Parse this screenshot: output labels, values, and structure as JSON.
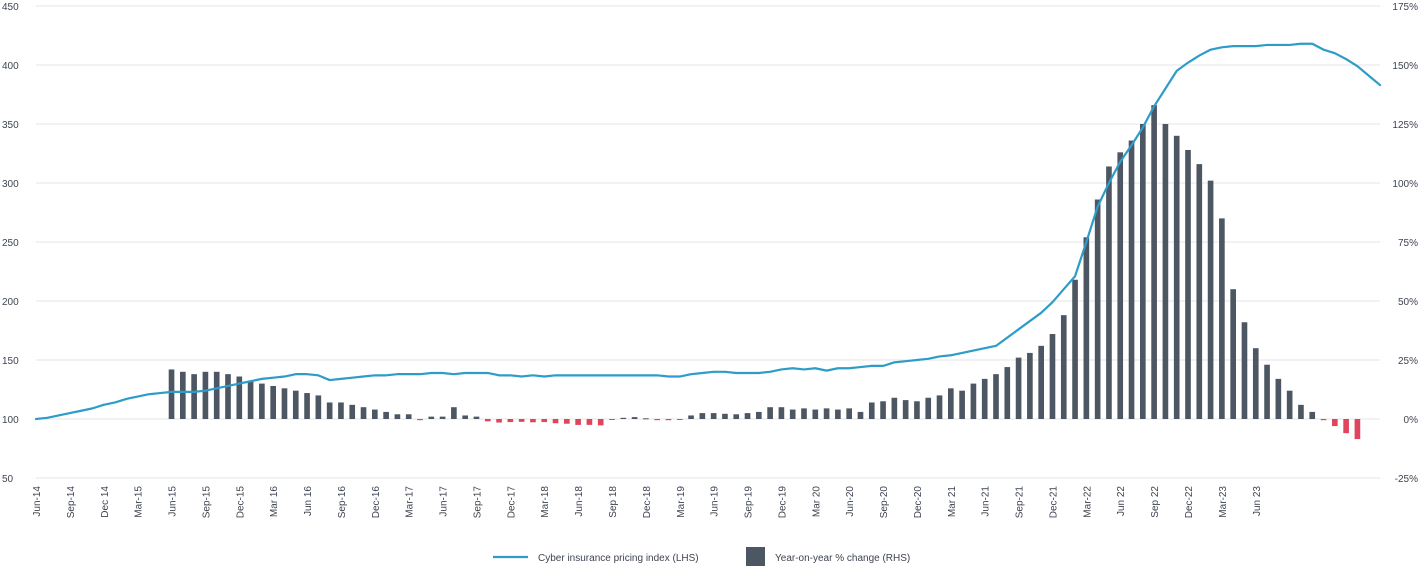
{
  "chart_data": {
    "type": "bar+line",
    "x_labels": [
      "Jun-14",
      "Sep-14",
      "Dec 14",
      "Mar-15",
      "Jun-15",
      "Sep-15",
      "Dec-15",
      "Mar 16",
      "Jun 16",
      "Sep-16",
      "Dec-16",
      "Mar-17",
      "Jun-17",
      "Sep-17",
      "Dec-17",
      "Mar-18",
      "Jun-18",
      "Sep 18",
      "Dec-18",
      "Mar-19",
      "Jun-19",
      "Sep-19",
      "Dec-19",
      "Mar 20",
      "Jun-20",
      "Sep-20",
      "Dec-20",
      "Mar 21",
      "Jun-21",
      "Sep-21",
      "Dec-21",
      "Mar-22",
      "Jun 22",
      "Sep 22",
      "Dec-22",
      "Mar-23",
      "Jun 23"
    ],
    "y_left_ticks": [
      "50",
      "100",
      "150",
      "200",
      "250",
      "300",
      "350",
      "400",
      "450"
    ],
    "y_right_ticks": [
      "-25%",
      "0%",
      "25%",
      "50%",
      "75%",
      "100%",
      "125%",
      "150%",
      "175%"
    ],
    "y_left_range": [
      50,
      450
    ],
    "y_right_range": [
      -25,
      175
    ],
    "grid": true,
    "legend_position": "bottom-center",
    "colors": {
      "line": "#2e9cc8",
      "bar_positive": "#4d5663",
      "bar_negative": "#e0455e",
      "grid": "#e6e6e6",
      "text": "#3d4450"
    },
    "series": [
      {
        "name": "Cyber insurance pricing index (LHS)",
        "type": "line",
        "axis": "left",
        "values": [
          100,
          101,
          103,
          105,
          107,
          109,
          112,
          114,
          117,
          119,
          121,
          122,
          123,
          123,
          123,
          124,
          126,
          128,
          130,
          132,
          134,
          135,
          136,
          138,
          138,
          137,
          133,
          134,
          135,
          136,
          137,
          137,
          138,
          138,
          138,
          139,
          139,
          138,
          139,
          139,
          139,
          137,
          137,
          136,
          137,
          136,
          137,
          137,
          137,
          137,
          137,
          137,
          137,
          137,
          137,
          137,
          136,
          136,
          138,
          139,
          140,
          140,
          139,
          139,
          139,
          140,
          142,
          143,
          142,
          143,
          141,
          143,
          143,
          144,
          145,
          145,
          148,
          149,
          150,
          151,
          153,
          154,
          156,
          158,
          160,
          162,
          169,
          176,
          183,
          190,
          199,
          210,
          221,
          250,
          280,
          300,
          318,
          332,
          347,
          365,
          380,
          395,
          402,
          408,
          413,
          415,
          416,
          416,
          416,
          417,
          417,
          417,
          418,
          418,
          413,
          410,
          405,
          399,
          391,
          383
        ]
      },
      {
        "name": "Year-on-year % change (RHS)",
        "type": "bar",
        "axis": "right",
        "values": [
          null,
          null,
          null,
          null,
          null,
          null,
          null,
          null,
          null,
          null,
          null,
          null,
          21,
          20,
          19,
          20,
          20,
          19,
          18,
          16,
          15,
          14,
          13,
          12,
          11,
          10,
          7,
          7,
          6,
          5,
          4,
          3,
          2,
          2,
          -0.5,
          1,
          1,
          5,
          1.5,
          1,
          -1,
          -1.5,
          -1.3,
          -1.2,
          -1.4,
          -1.3,
          -1.8,
          -2,
          -2.5,
          -2.5,
          -2.7,
          -0.3,
          0.5,
          0.8,
          0.3,
          -0.5,
          -0.5,
          -0.2,
          1.5,
          2.5,
          2.5,
          2.2,
          2,
          2.5,
          3,
          5,
          5,
          4,
          4.5,
          4,
          4.5,
          4,
          4.5,
          3,
          7,
          7.5,
          9,
          8,
          7.5,
          9,
          10,
          13,
          12,
          15,
          17,
          19,
          22,
          26,
          28,
          31,
          36,
          44,
          59,
          77,
          93,
          107,
          113,
          118,
          125,
          133,
          125,
          120,
          114,
          108,
          101,
          85,
          55,
          41,
          30,
          23,
          17,
          12,
          6,
          3,
          -0.5,
          -3,
          -6,
          -8.5
        ]
      }
    ]
  }
}
